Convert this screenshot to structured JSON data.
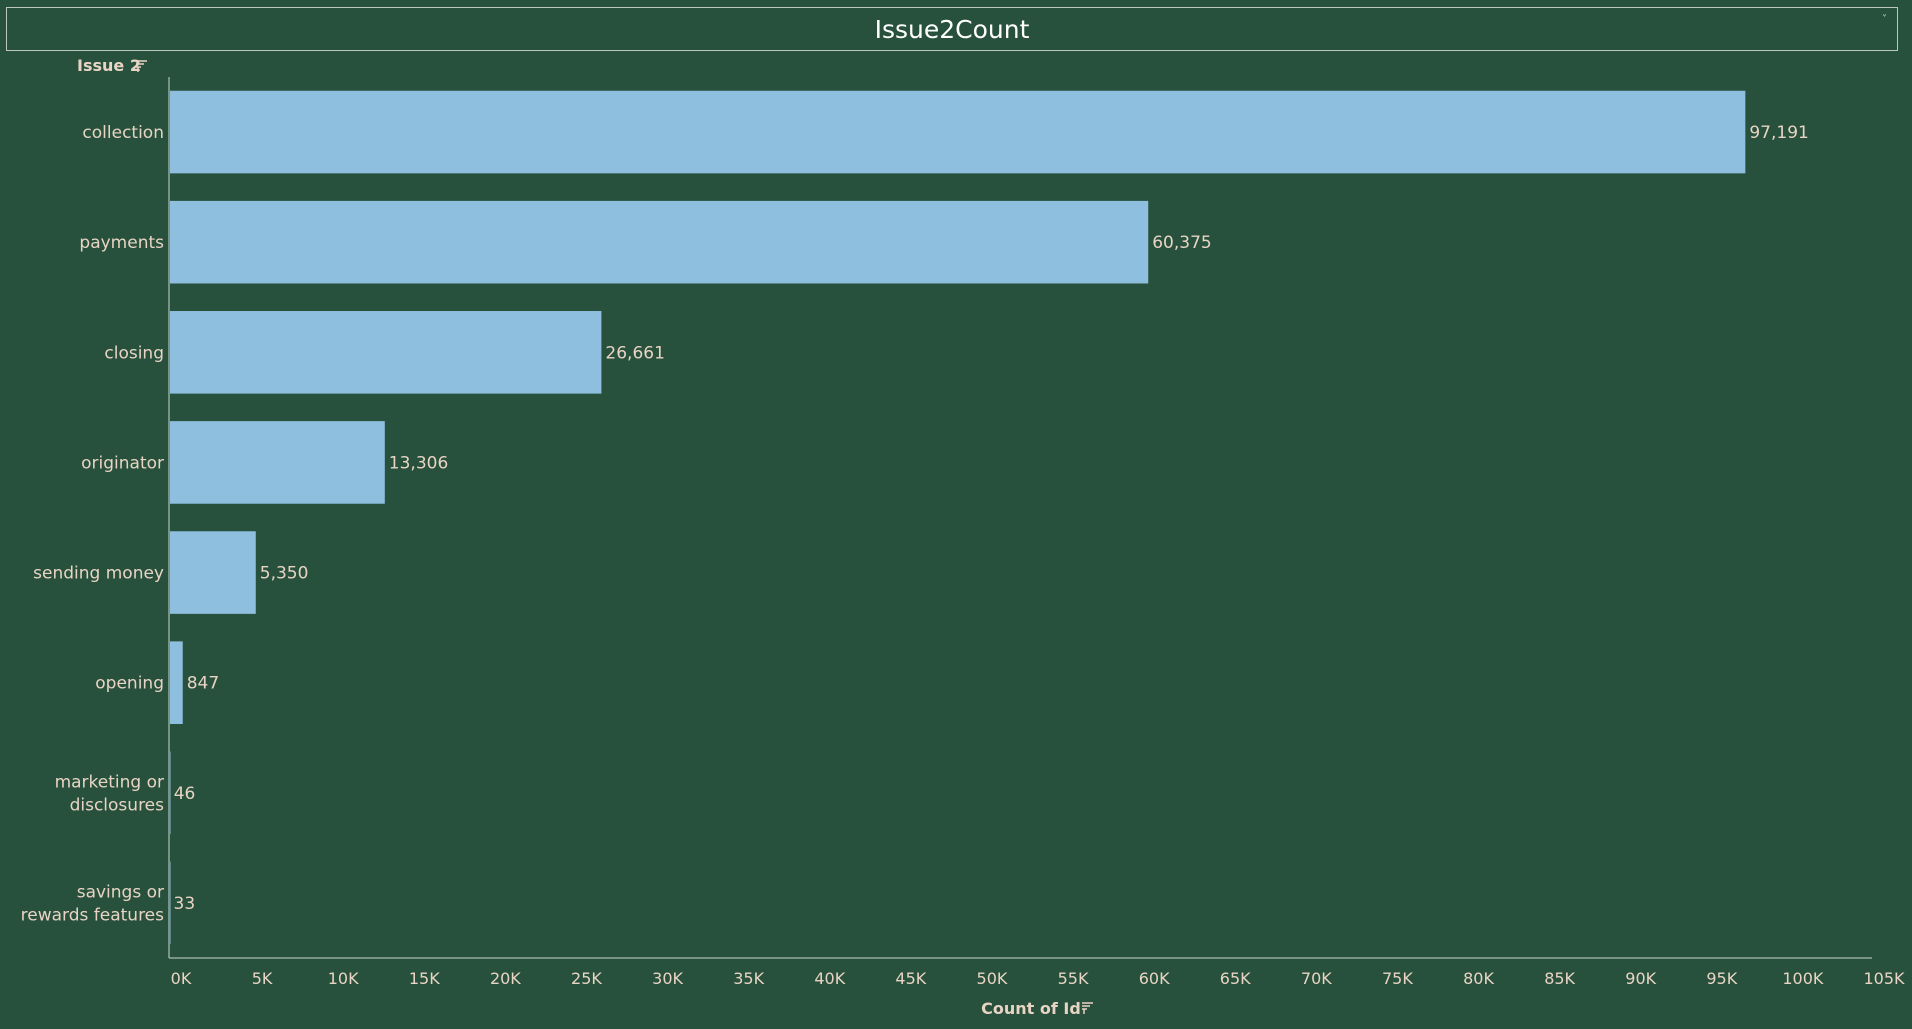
{
  "title": "Issue2Count",
  "colors": {
    "background": "#27513c",
    "bar": "#8fbfdf",
    "text": "#e8d4c4",
    "axis": "#c9d6cc"
  },
  "icons": {
    "sort": "sort-icon",
    "menu": "dropdown-caret-icon"
  },
  "chart_data": {
    "type": "bar",
    "orientation": "horizontal",
    "row_header": "Issue 2",
    "xlabel": "Count of Id",
    "xlim": [
      0,
      105000
    ],
    "categories": [
      "collection",
      "payments",
      "closing",
      "originator",
      "sending money",
      "opening",
      "marketing or disclosures",
      "savings or rewards features"
    ],
    "category_lines": [
      [
        "collection"
      ],
      [
        "payments"
      ],
      [
        "closing"
      ],
      [
        "originator"
      ],
      [
        "sending money"
      ],
      [
        "opening"
      ],
      [
        "marketing or",
        "disclosures"
      ],
      [
        "savings or",
        "rewards features"
      ]
    ],
    "values": [
      97191,
      60375,
      26661,
      13306,
      5350,
      847,
      46,
      33
    ],
    "data_labels": [
      "97,191",
      "60,375",
      "26,661",
      "13,306",
      "5,350",
      "847",
      "46",
      "33"
    ],
    "ticks": [
      0,
      5000,
      10000,
      15000,
      20000,
      25000,
      30000,
      35000,
      40000,
      45000,
      50000,
      55000,
      60000,
      65000,
      70000,
      75000,
      80000,
      85000,
      90000,
      95000,
      100000,
      105000
    ],
    "tick_labels": [
      "0K",
      "5K",
      "10K",
      "15K",
      "20K",
      "25K",
      "30K",
      "35K",
      "40K",
      "45K",
      "50K",
      "55K",
      "60K",
      "65K",
      "70K",
      "75K",
      "80K",
      "85K",
      "90K",
      "95K",
      "100K",
      "105K"
    ],
    "grid": false,
    "legend": "none"
  }
}
